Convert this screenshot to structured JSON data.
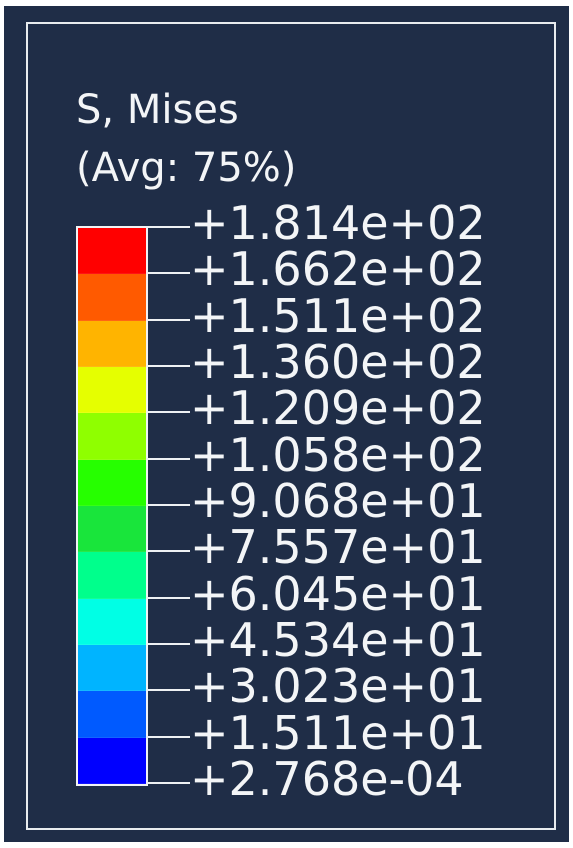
{
  "legend": {
    "title": "S, Mises",
    "subtitle": "(Avg: 75%)",
    "background_color": "#1f2d47",
    "frame_color": "#e8ecef",
    "text_color": "#f3f5f7",
    "bands": [
      {
        "color": "#ff0000"
      },
      {
        "color": "#ff5a00"
      },
      {
        "color": "#ffb400"
      },
      {
        "color": "#e5ff00"
      },
      {
        "color": "#8fff00"
      },
      {
        "color": "#26ff00"
      },
      {
        "color": "#19e53b"
      },
      {
        "color": "#00ff8c"
      },
      {
        "color": "#00ffe5"
      },
      {
        "color": "#00b4ff"
      },
      {
        "color": "#005aff"
      },
      {
        "color": "#0000ff"
      }
    ],
    "ticks": [
      "+1.814e+02",
      "+1.662e+02",
      "+1.511e+02",
      "+1.360e+02",
      "+1.209e+02",
      "+1.058e+02",
      "+9.068e+01",
      "+7.557e+01",
      "+6.045e+01",
      "+4.534e+01",
      "+3.023e+01",
      "+1.511e+01",
      "+2.768e-04"
    ]
  }
}
